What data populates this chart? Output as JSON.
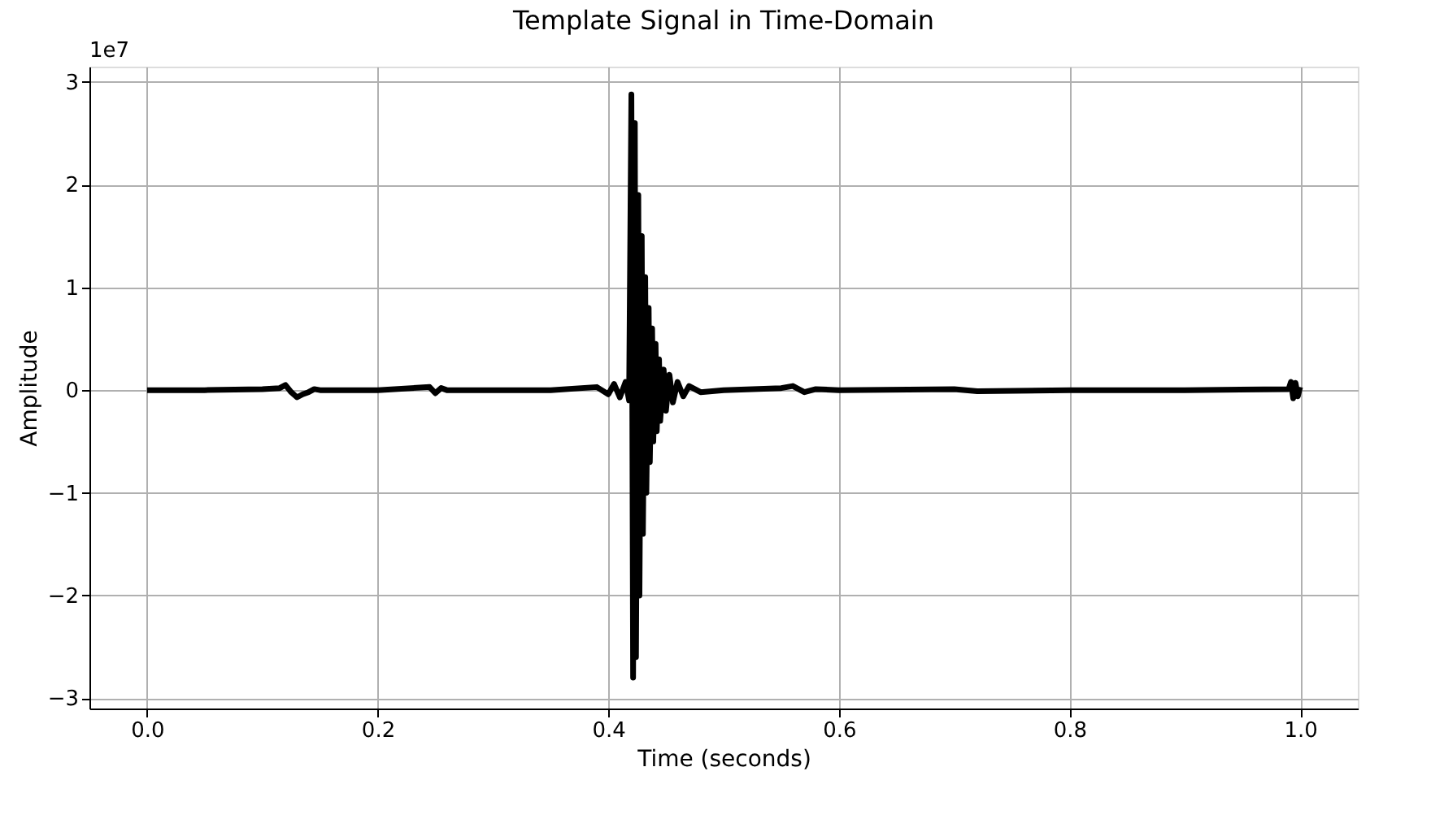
{
  "chart_data": {
    "type": "line",
    "title": "Template Signal in Time-Domain",
    "xlabel": "Time (seconds)",
    "ylabel": "Amplitude",
    "annotations": [
      "1e7"
    ],
    "x": [
      0.0,
      0.05,
      0.1,
      0.115,
      0.12,
      0.125,
      0.13,
      0.135,
      0.14,
      0.145,
      0.15,
      0.2,
      0.245,
      0.25,
      0.255,
      0.26,
      0.35,
      0.39,
      0.4,
      0.405,
      0.41,
      0.415,
      0.418,
      0.42,
      0.4215,
      0.423,
      0.424,
      0.426,
      0.427,
      0.429,
      0.43,
      0.432,
      0.433,
      0.435,
      0.436,
      0.438,
      0.439,
      0.441,
      0.442,
      0.444,
      0.445,
      0.448,
      0.45,
      0.453,
      0.456,
      0.46,
      0.465,
      0.47,
      0.48,
      0.5,
      0.55,
      0.56,
      0.57,
      0.58,
      0.6,
      0.7,
      0.72,
      0.8,
      0.9,
      0.99,
      0.992,
      0.994,
      0.996,
      0.998,
      1.0
    ],
    "series": [
      {
        "color": "#000000",
        "values": [
          0,
          0.0,
          0.01,
          0.02,
          0.05,
          -0.02,
          -0.07,
          -0.04,
          -0.02,
          0.01,
          0,
          0.0,
          0.03,
          -0.03,
          0.02,
          0,
          0,
          0.03,
          -0.04,
          0.06,
          -0.07,
          0.08,
          -0.1,
          2.88,
          -2.8,
          2.6,
          -2.6,
          1.9,
          -2.0,
          1.5,
          -1.4,
          1.1,
          -1.0,
          0.8,
          -0.7,
          0.6,
          -0.5,
          0.45,
          -0.4,
          0.3,
          -0.3,
          0.2,
          -0.2,
          0.15,
          -0.12,
          0.08,
          -0.06,
          0.04,
          -0.02,
          0,
          0.02,
          0.04,
          -0.02,
          0.01,
          0,
          0.01,
          -0.01,
          0,
          0.0,
          0.01,
          0.08,
          -0.08,
          0.07,
          -0.06,
          0.03
        ]
      }
    ],
    "xlim": [
      -0.05,
      1.05
    ],
    "ylim": [
      -3.1,
      3.15
    ],
    "xticks": [
      {
        "value": 0,
        "label": "0.0"
      },
      {
        "value": 0.2,
        "label": "0.2"
      },
      {
        "value": 0.4,
        "label": "0.4"
      },
      {
        "value": 0.6,
        "label": "0.6"
      },
      {
        "value": 0.8,
        "label": "0.8"
      },
      {
        "value": 1,
        "label": "1.0"
      }
    ],
    "yticks": [
      -3,
      -2,
      -1,
      0,
      1,
      2,
      3
    ],
    "grid": true,
    "marker": "none",
    "line_style": "solid"
  }
}
